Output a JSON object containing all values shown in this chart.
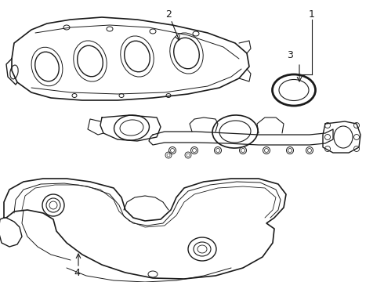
{
  "background_color": "#ffffff",
  "line_color": "#1a1a1a",
  "fig_width": 4.9,
  "fig_height": 3.6,
  "dpi": 100,
  "xlim": [
    0,
    490
  ],
  "ylim": [
    0,
    360
  ]
}
